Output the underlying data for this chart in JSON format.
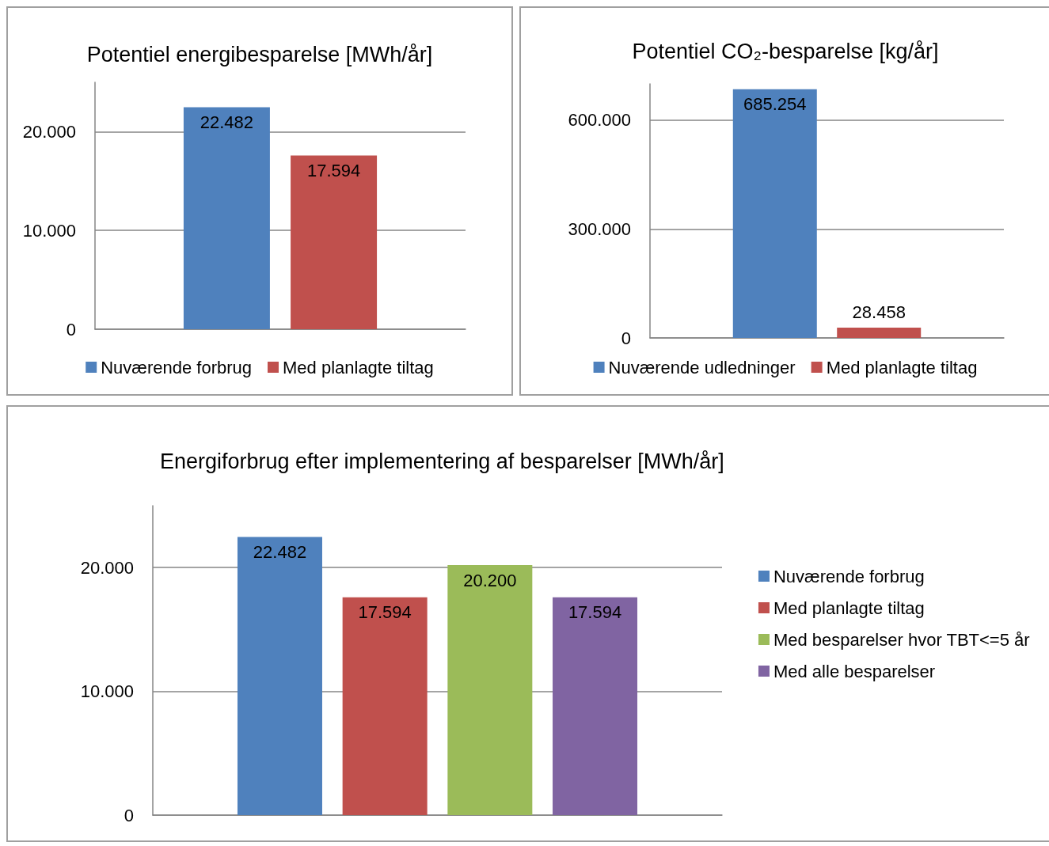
{
  "chart_data": [
    {
      "type": "bar",
      "title": "Potentiel energibesparelse [MWh/år]",
      "categories": [
        null
      ],
      "series": [
        {
          "name": "Nuværende forbrug",
          "color": "#4f81bd",
          "values": [
            22482
          ],
          "value_labels": [
            "22.482"
          ]
        },
        {
          "name": "Med planlagte tiltag",
          "color": "#c0504d",
          "values": [
            17594
          ],
          "value_labels": [
            "17.594"
          ]
        }
      ],
      "ylim": [
        0,
        25000
      ],
      "yticks": [
        {
          "value": 0,
          "label": "0"
        },
        {
          "value": 10000,
          "label": "10.000"
        },
        {
          "value": 20000,
          "label": "20.000"
        }
      ],
      "grid": "y",
      "legend": "bottom"
    },
    {
      "type": "bar",
      "title": "Potentiel CO₂-besparelse [kg/år]",
      "categories": [
        null
      ],
      "series": [
        {
          "name": "Nuværende udledninger",
          "color": "#4f81bd",
          "values": [
            685254
          ],
          "value_labels": [
            "685.254"
          ]
        },
        {
          "name": "Med planlagte tiltag",
          "color": "#c0504d",
          "values": [
            28458
          ],
          "value_labels": [
            "28.458"
          ]
        }
      ],
      "ylim": [
        0,
        700000
      ],
      "yticks": [
        {
          "value": 0,
          "label": "0"
        },
        {
          "value": 300000,
          "label": "300.000"
        },
        {
          "value": 600000,
          "label": "600.000"
        }
      ],
      "grid": "y",
      "legend": "bottom"
    },
    {
      "type": "bar",
      "title": "Energiforbrug efter implementering af besparelser [MWh/år]",
      "categories": [
        null
      ],
      "series": [
        {
          "name": "Nuværende forbrug",
          "color": "#4f81bd",
          "values": [
            22482
          ],
          "value_labels": [
            "22.482"
          ]
        },
        {
          "name": "Med planlagte tiltag",
          "color": "#c0504d",
          "values": [
            17594
          ],
          "value_labels": [
            "17.594"
          ]
        },
        {
          "name": "Med besparelser hvor TBT<=5 år",
          "color": "#9bbb59",
          "values": [
            20200
          ],
          "value_labels": [
            "20.200"
          ]
        },
        {
          "name": "Med alle besparelser",
          "color": "#8064a2",
          "values": [
            17594
          ],
          "value_labels": [
            "17.594"
          ]
        }
      ],
      "ylim": [
        0,
        25000
      ],
      "yticks": [
        {
          "value": 0,
          "label": "0"
        },
        {
          "value": 10000,
          "label": "10.000"
        },
        {
          "value": 20000,
          "label": "20.000"
        }
      ],
      "grid": "y",
      "legend": "right"
    }
  ]
}
